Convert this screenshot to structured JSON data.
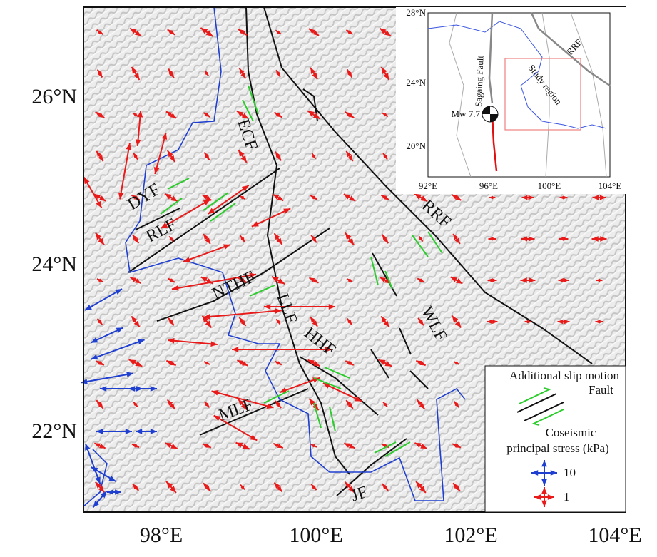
{
  "map": {
    "y_axis_labels": [
      "26°N",
      "24°N",
      "22°N"
    ],
    "x_axis_labels": [
      "98°E",
      "100°E",
      "102°E",
      "104°E"
    ],
    "fault_labels": [
      "ECF",
      "DYF",
      "RLF",
      "NTHF",
      "LLF",
      "HHF",
      "RRF",
      "WLF",
      "MLF",
      "JF"
    ],
    "legend": {
      "slip_title": "Additional slip motion",
      "fault": "Fault",
      "stress_title_1": "Coseismic",
      "stress_title_2": "principal stress (kPa)",
      "blue_scale": "10",
      "red_scale": "1"
    },
    "inset": {
      "y_labels": [
        "28°N",
        "24°N",
        "20°N"
      ],
      "x_labels": [
        "92°E",
        "96°E",
        "100°E",
        "104°E"
      ],
      "sagaing": "Sagaing Fault",
      "event": "Mw 7.7",
      "study": "Study region",
      "rrf": "RRF"
    }
  }
}
